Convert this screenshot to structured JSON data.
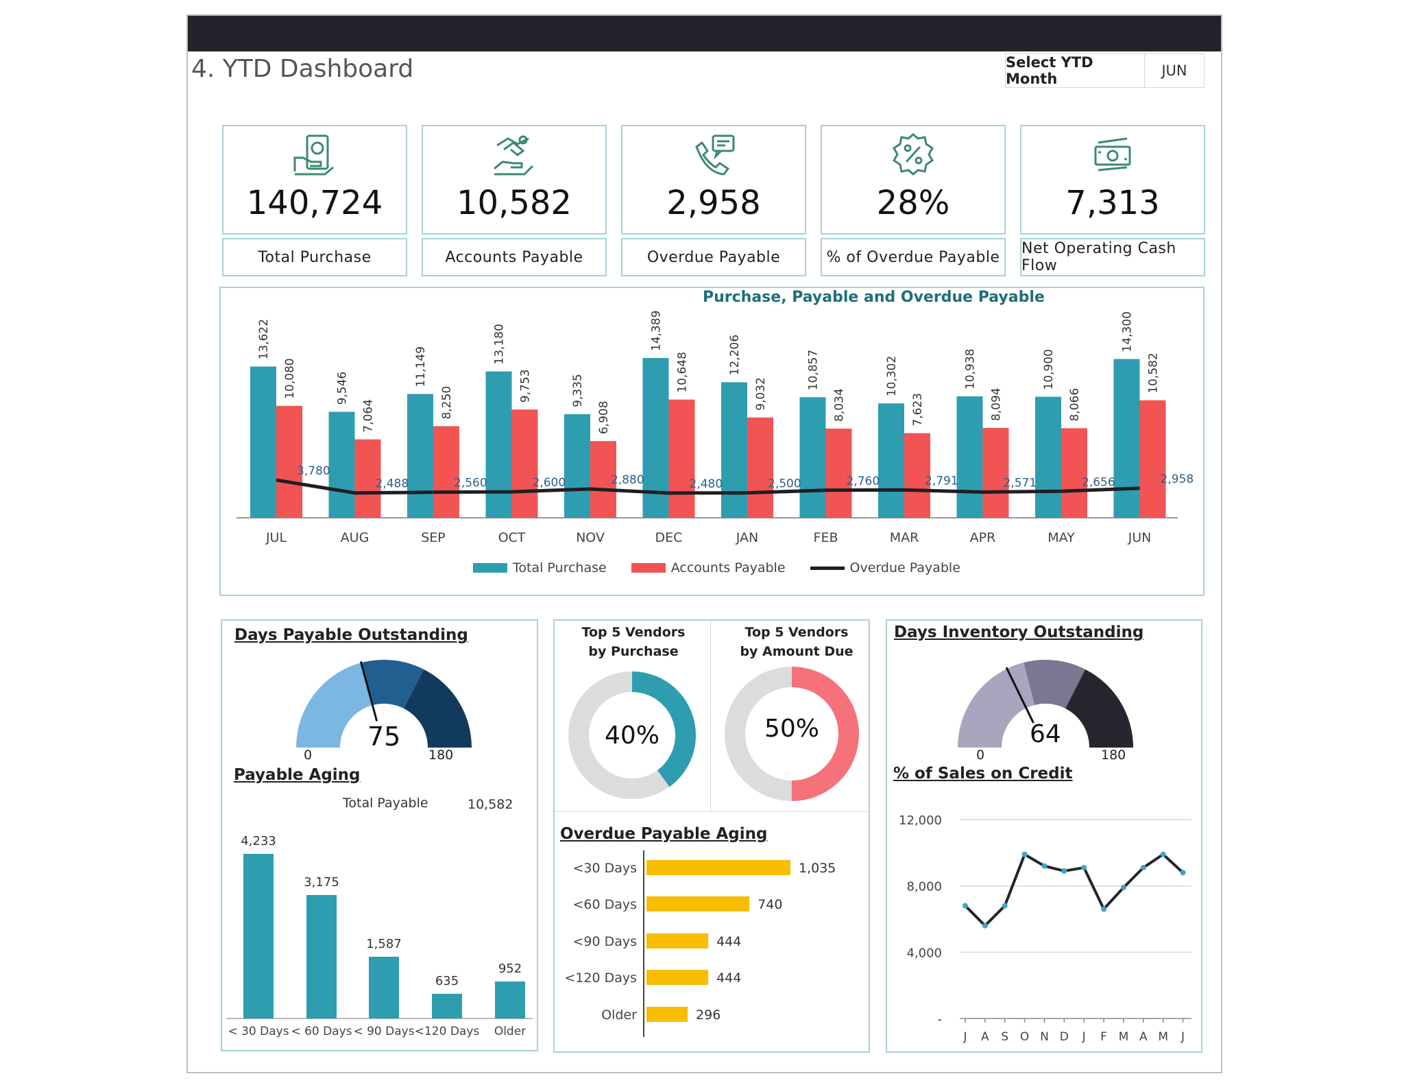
{
  "header": {
    "title": "4. YTD Dashboard",
    "select_label": "Select YTD Month",
    "select_value": "JUN"
  },
  "kpis": [
    {
      "icon": "money-hand-icon",
      "value": "140,724",
      "label": "Total Purchase"
    },
    {
      "icon": "handshake-money-icon",
      "value": "10,582",
      "label": "Accounts Payable"
    },
    {
      "icon": "phone-chat-icon",
      "value": "2,958",
      "label": "Overdue Payable"
    },
    {
      "icon": "percent-badge-icon",
      "value": "28%",
      "label": "% of Overdue Payable"
    },
    {
      "icon": "cash-stack-icon",
      "value": "7,313",
      "label": "Net Operating Cash Flow"
    }
  ],
  "colors": {
    "teal": "#2e9db0",
    "red": "#f25454",
    "dark": "#1e1f22",
    "gold": "#f7bd00",
    "grey": "#dcdcdc",
    "pink": "#f5727a"
  },
  "main_chart": {
    "title": "Purchase, Payable and Overdue Payable",
    "legend": [
      "Total Purchase",
      "Accounts Payable",
      "Overdue Payable"
    ]
  },
  "dpo": {
    "title": "Days Payable Outstanding",
    "value": "75",
    "min": "0",
    "max": "180",
    "needle_value": 75,
    "bands": [
      "#7bb7e2",
      "#215f91",
      "#123a5c"
    ]
  },
  "payable_aging": {
    "title": "Payable Aging",
    "total_label": "Total Payable",
    "total_value": "10,582"
  },
  "vendors": {
    "purchase_title_1": "Top 5 Vendors",
    "purchase_title_2": "by Purchase",
    "purchase_pct": "40%",
    "purchase_fraction": 0.4,
    "due_title_1": "Top 5 Vendors",
    "due_title_2": "by Amount Due",
    "due_pct": "50%",
    "due_fraction": 0.5
  },
  "overdue_aging": {
    "title": "Overdue Payable Aging"
  },
  "dio": {
    "title": "Days Inventory Outstanding",
    "value": "64",
    "min": "0",
    "max": "180",
    "needle_value": 64,
    "bands": [
      "#a8a6be",
      "#7c7693",
      "#26262e"
    ]
  },
  "sales_credit": {
    "title": "% of Sales on Credit"
  },
  "chart_data": [
    {
      "type": "bar",
      "title": "Purchase, Payable and Overdue Payable",
      "categories": [
        "JUL",
        "AUG",
        "SEP",
        "OCT",
        "NOV",
        "DEC",
        "JAN",
        "FEB",
        "MAR",
        "APR",
        "MAY",
        "JUN"
      ],
      "series": [
        {
          "name": "Total Purchase",
          "type": "bar",
          "values": [
            13622,
            9546,
            11149,
            13180,
            9335,
            14389,
            12206,
            10857,
            10302,
            10938,
            10900,
            14300
          ],
          "labels": [
            "13,622",
            "9,546",
            "11,149",
            "13,180",
            "9,335",
            "14,389",
            "12,206",
            "10,857",
            "10,302",
            "10,938",
            "10,900",
            "14,300"
          ]
        },
        {
          "name": "Accounts Payable",
          "type": "bar",
          "values": [
            10080,
            7064,
            8250,
            9753,
            6908,
            10648,
            9032,
            8034,
            7623,
            8094,
            8066,
            10582
          ],
          "labels": [
            "10,080",
            "7,064",
            "8,250",
            "9,753",
            "6,908",
            "10,648",
            "9,032",
            "8,034",
            "7,623",
            "8,094",
            "8,066",
            "10,582"
          ]
        },
        {
          "name": "Overdue Payable",
          "type": "line",
          "values": [
            3780,
            2488,
            2560,
            2600,
            2880,
            2480,
            2500,
            2760,
            2791,
            2571,
            2656,
            2958
          ],
          "labels": [
            "3,780",
            "2,488",
            "2,560",
            "2,600",
            "2,880",
            "2,480",
            "2,500",
            "2,760",
            "2,791",
            "2,571",
            "2,656",
            "2,958"
          ]
        }
      ]
    },
    {
      "type": "bar",
      "title": "Payable Aging",
      "categories": [
        "< 30 Days",
        "< 60 Days",
        "< 90 Days",
        "<120 Days",
        "Older"
      ],
      "values": [
        4233,
        3175,
        1587,
        635,
        952
      ],
      "labels": [
        "4,233",
        "3,175",
        "1,587",
        "635",
        "952"
      ]
    },
    {
      "type": "bar",
      "orientation": "horizontal",
      "title": "Overdue Payable Aging",
      "categories": [
        "<30 Days",
        "<60 Days",
        "<90 Days",
        "<120 Days",
        "Older"
      ],
      "values": [
        1035,
        740,
        444,
        444,
        296
      ],
      "labels": [
        "1,035",
        "740",
        "444",
        "444",
        "296"
      ]
    },
    {
      "type": "line",
      "title": "% of Sales on Credit",
      "categories": [
        "J",
        "A",
        "S",
        "O",
        "N",
        "D",
        "J",
        "F",
        "M",
        "A",
        "M",
        "J"
      ],
      "values": [
        6800,
        5600,
        6800,
        9900,
        9200,
        8900,
        9100,
        6600,
        7900,
        9100,
        9900,
        8800
      ],
      "ylim": [
        0,
        12000
      ],
      "yticks": [
        "-",
        "4,000",
        "8,000",
        "12,000"
      ],
      "grid": true
    }
  ]
}
